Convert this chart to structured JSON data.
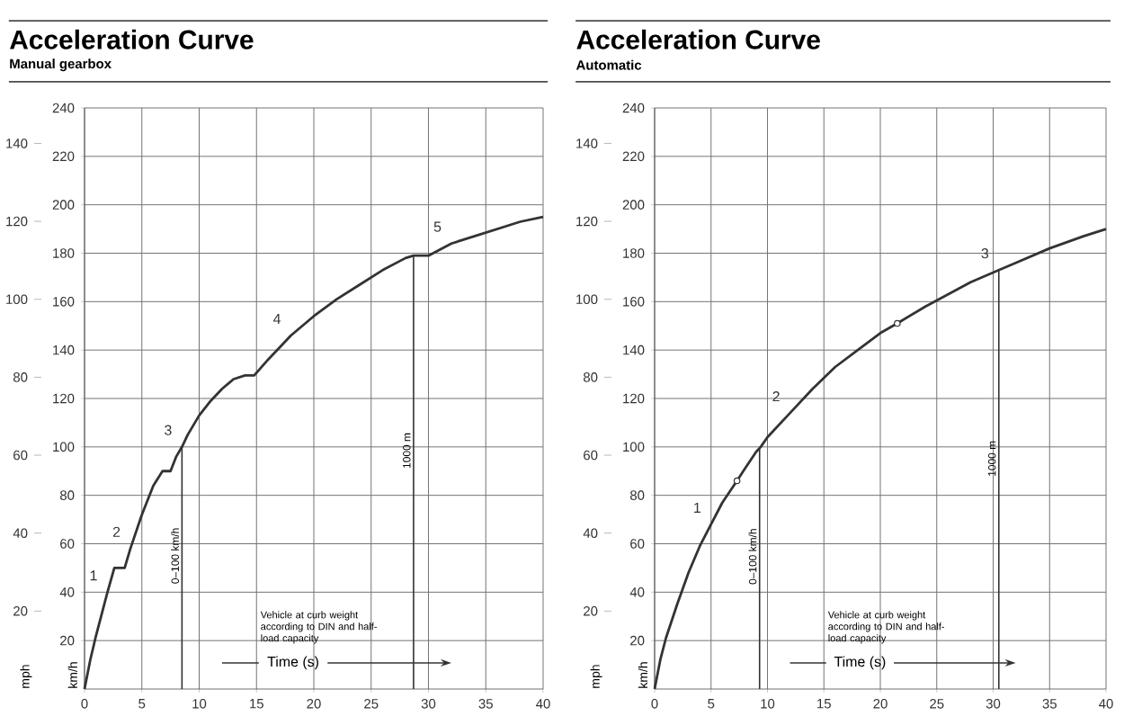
{
  "chart_data": [
    {
      "type": "line",
      "title": "Acceleration Curve",
      "subtitle": "Manual gearbox",
      "xlabel": "Time (s)",
      "ylabel": "km/h",
      "y2label": "mph",
      "xlim": [
        0,
        40
      ],
      "xticks": [
        0,
        5,
        10,
        15,
        20,
        25,
        30,
        35,
        40
      ],
      "ylim": [
        0,
        240
      ],
      "yticks": [
        20,
        40,
        60,
        80,
        100,
        120,
        140,
        160,
        180,
        200,
        220,
        240
      ],
      "y2lim": [
        0,
        149.1
      ],
      "y2ticks": [
        20,
        40,
        60,
        80,
        100,
        120,
        140
      ],
      "grid": true,
      "series": [
        {
          "color": "#333333",
          "marker": "none",
          "x": [
            0,
            0.5,
            1,
            1.5,
            2,
            2.6,
            3.5,
            4,
            5,
            6,
            6.8,
            7.5,
            8,
            8.5,
            9,
            10,
            11,
            12,
            13,
            14,
            14.8,
            16,
            18,
            20,
            22,
            24,
            26,
            28,
            28.7,
            30,
            32,
            34,
            36,
            38,
            40
          ],
          "values": [
            0,
            12,
            22,
            31,
            40,
            50,
            50,
            58,
            72,
            84,
            90,
            90,
            96,
            100,
            105,
            113,
            119,
            124,
            128,
            129.5,
            129.5,
            136,
            146,
            154,
            161,
            167,
            173,
            178,
            179,
            179,
            184,
            187,
            190,
            193,
            195
          ]
        }
      ],
      "ref_lines": [
        {
          "axis": "x",
          "value": 8.5,
          "label": "0–100 km/h",
          "color": "#333333"
        },
        {
          "axis": "x",
          "value": 28.7,
          "label": "1000 m",
          "color": "#333333"
        }
      ],
      "annotations": [
        {
          "text": "1",
          "x": 2,
          "y": 40
        },
        {
          "text": "2",
          "x": 4,
          "y": 58
        },
        {
          "text": "3",
          "x": 8.5,
          "y": 100
        },
        {
          "text": "4",
          "x": 18,
          "y": 146
        },
        {
          "text": "5",
          "x": 32,
          "y": 184
        },
        "Vehicle at curb weight according to DIN and half-load capacity"
      ]
    },
    {
      "type": "line",
      "title": "Acceleration Curve",
      "subtitle": "Automatic",
      "xlabel": "Time (s)",
      "ylabel": "km/h",
      "y2label": "mph",
      "xlim": [
        0,
        40
      ],
      "xticks": [
        0,
        5,
        10,
        15,
        20,
        25,
        30,
        35,
        40
      ],
      "ylim": [
        0,
        240
      ],
      "yticks": [
        20,
        40,
        60,
        80,
        100,
        120,
        140,
        160,
        180,
        200,
        220,
        240
      ],
      "y2lim": [
        0,
        149.1
      ],
      "y2ticks": [
        20,
        40,
        60,
        80,
        100,
        120,
        140
      ],
      "grid": true,
      "series": [
        {
          "color": "#333333",
          "marker": "none",
          "x": [
            0,
            0.5,
            1,
            2,
            3,
            4,
            5,
            6,
            7.3,
            8,
            9,
            9.4,
            10,
            12,
            14,
            16,
            18,
            20,
            21.5,
            24,
            26,
            28,
            30.5,
            32,
            35,
            38,
            40
          ],
          "values": [
            0,
            12,
            21,
            35,
            48,
            59,
            68,
            77,
            86,
            91,
            98,
            100,
            104,
            114,
            124,
            133,
            140,
            147,
            151,
            158,
            163,
            168,
            173,
            176,
            182,
            187,
            190
          ]
        },
        {
          "type": "scatter",
          "color": "#333333",
          "marker": "circle",
          "x": [
            7.3,
            21.5
          ],
          "values": [
            86,
            151
          ]
        }
      ],
      "ref_lines": [
        {
          "axis": "x",
          "value": 9.3,
          "label": "0–100 km/h",
          "color": "#333333"
        },
        {
          "axis": "x",
          "value": 30.5,
          "label": "1000 m",
          "color": "#333333"
        }
      ],
      "annotations": [
        {
          "text": "1",
          "x": 5,
          "y": 68
        },
        {
          "text": "2",
          "x": 12,
          "y": 114
        },
        {
          "text": "3",
          "x": 30.5,
          "y": 173
        },
        "Vehicle at curb weight according to DIN and half-load capacity"
      ]
    }
  ]
}
